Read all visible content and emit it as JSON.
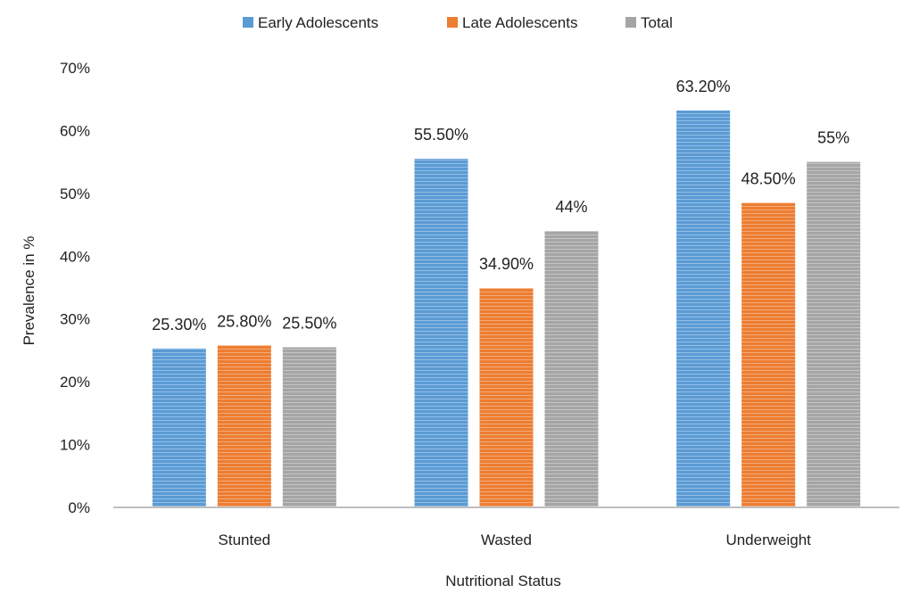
{
  "chart_data": {
    "type": "bar",
    "title": "",
    "xlabel": "Nutritional Status",
    "ylabel": "Prevalence in %",
    "categories": [
      "Stunted",
      "Wasted",
      "Underweight"
    ],
    "ylim": [
      0,
      70
    ],
    "yticks": [
      "0%",
      "10%",
      "20%",
      "30%",
      "40%",
      "50%",
      "60%",
      "70%"
    ],
    "grid": false,
    "legend_position": "top",
    "series": [
      {
        "name": "Early Adolescents",
        "color": "#5b9bd5",
        "values": [
          25.3,
          55.5,
          63.2
        ],
        "labels": [
          "25.30%",
          "55.50%",
          "63.20%"
        ]
      },
      {
        "name": "Late Adolescents",
        "color": "#ed7d31",
        "values": [
          25.8,
          34.9,
          48.5
        ],
        "labels": [
          "25.80%",
          "34.90%",
          "48.50%"
        ]
      },
      {
        "name": "Total",
        "color": "#a5a5a5",
        "values": [
          25.5,
          44,
          55
        ],
        "labels": [
          "25.50%",
          "44%",
          "55%"
        ]
      }
    ]
  }
}
